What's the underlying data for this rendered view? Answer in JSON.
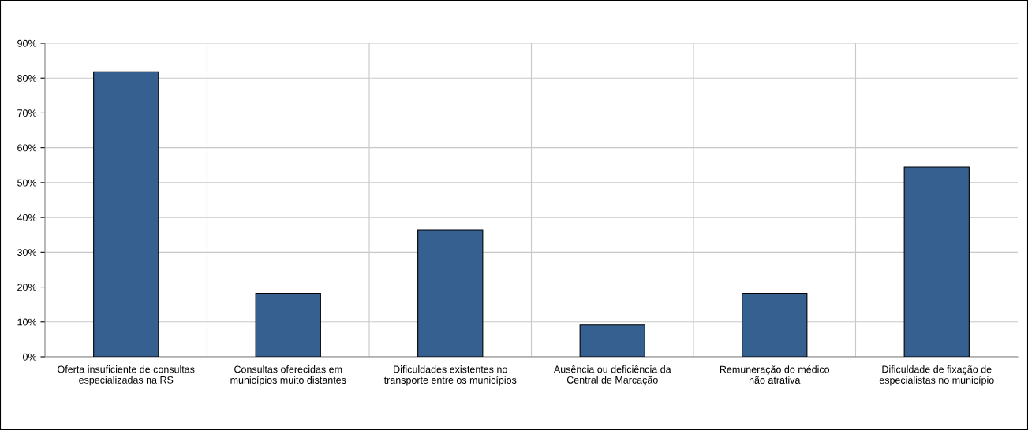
{
  "chart_data": {
    "type": "bar",
    "categories": [
      "Oferta insuficiente de consultas\nespecializadas na RS",
      "Consultas oferecidas em\nmunicípios muito distantes",
      "Dificuldades existentes no\ntransporte entre os municípios",
      "Ausência ou deficiência da\nCentral de Marcação",
      "Remuneração do médico\nnão atrativa",
      "Dificuldade de fixação de\nespecialistas no município"
    ],
    "values": [
      81.8,
      18.2,
      36.4,
      9.1,
      18.2,
      54.5
    ],
    "color": "#36608f",
    "ylim": [
      0,
      90
    ],
    "yticks": [
      {
        "value": 0,
        "label": "0%"
      },
      {
        "value": 10,
        "label": "10%"
      },
      {
        "value": 20,
        "label": "20%"
      },
      {
        "value": 30,
        "label": "30%"
      },
      {
        "value": 40,
        "label": "40%"
      },
      {
        "value": 50,
        "label": "50%"
      },
      {
        "value": 60,
        "label": "60%"
      },
      {
        "value": 70,
        "label": "70%"
      },
      {
        "value": 80,
        "label": "80%"
      },
      {
        "value": 90,
        "label": "90%"
      }
    ],
    "grid": true
  }
}
